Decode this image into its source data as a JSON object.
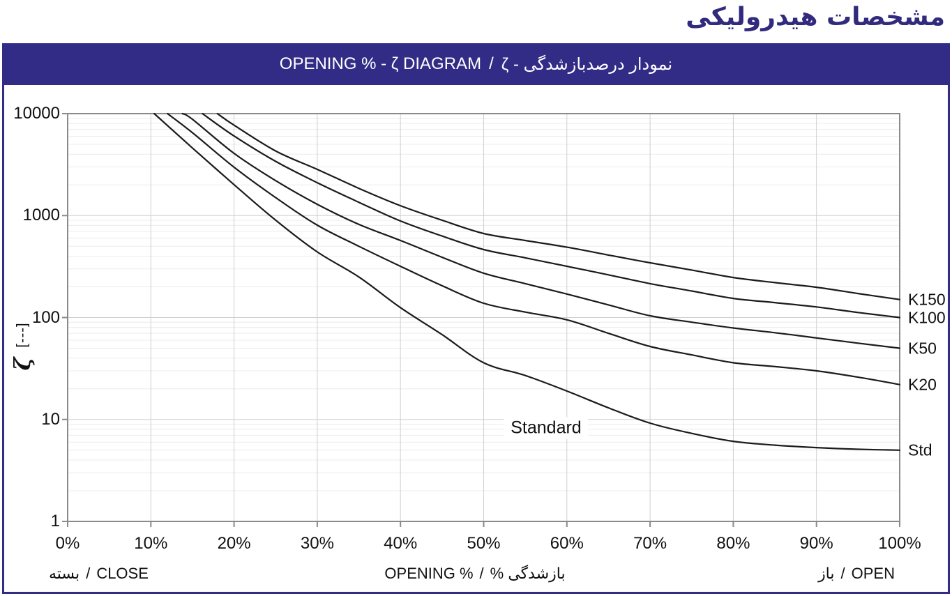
{
  "header": {
    "title_fa": "مشخصات هیدرولیکی"
  },
  "banner": {
    "title_latin": "OPENING % - ζ DIAGRAM",
    "separator": "/",
    "title_farsi_logical": "نمودار درصدبازشدگی - ζ"
  },
  "colors": {
    "indigo": "#332c87",
    "axis": "#8a8a8a",
    "grid_major": "#cfcfcf",
    "grid_minor": "#ececec",
    "curve": "#1b1b1b",
    "text": "#111111"
  },
  "chart_data": {
    "type": "line",
    "title": "OPENING % - ζ DIAGRAM",
    "grid": true,
    "legend_position": "right-edge",
    "x_axis": {
      "label_latin": "OPENING %",
      "label_separator": "/",
      "label_farsi_logical": "بازشدگی %",
      "unit": "%",
      "min": 0,
      "max": 100,
      "ticks": [
        0,
        10,
        20,
        30,
        40,
        50,
        60,
        70,
        80,
        90,
        100
      ]
    },
    "y_axis": {
      "label": "ζ",
      "unit": "[---]",
      "scale": "log",
      "min": 1,
      "max": 10000,
      "ticks": [
        1,
        10,
        100,
        1000,
        10000
      ]
    },
    "corner_labels": {
      "left": {
        "fa": "بسته",
        "sep": "/",
        "en": "CLOSE"
      },
      "right": {
        "fa": "باز",
        "sep": "/",
        "en": "OPEN"
      }
    },
    "annotation": {
      "text": "Standard",
      "at_percent": 57.5,
      "at_zeta": 8.2
    },
    "series": [
      {
        "label": "K150",
        "points": [
          [
            18,
            10000
          ],
          [
            20,
            7700
          ],
          [
            25,
            4300
          ],
          [
            30,
            2840
          ],
          [
            35,
            1850
          ],
          [
            40,
            1250
          ],
          [
            45,
            900
          ],
          [
            50,
            667
          ],
          [
            55,
            570
          ],
          [
            60,
            490
          ],
          [
            65,
            410
          ],
          [
            70,
            344
          ],
          [
            75,
            292
          ],
          [
            80,
            247
          ],
          [
            85,
            220
          ],
          [
            90,
            198
          ],
          [
            95,
            172
          ],
          [
            100,
            150
          ]
        ]
      },
      {
        "label": "K100",
        "points": [
          [
            16.2,
            10000
          ],
          [
            20,
            6030
          ],
          [
            25,
            3400
          ],
          [
            30,
            2100
          ],
          [
            35,
            1350
          ],
          [
            40,
            885
          ],
          [
            45,
            630
          ],
          [
            50,
            464
          ],
          [
            55,
            385
          ],
          [
            60,
            318
          ],
          [
            65,
            262
          ],
          [
            70,
            215
          ],
          [
            75,
            182
          ],
          [
            80,
            154
          ],
          [
            85,
            140
          ],
          [
            90,
            127
          ],
          [
            95,
            112
          ],
          [
            100,
            100
          ]
        ]
      },
      {
        "label": "K50",
        "points": [
          [
            13.8,
            10000
          ],
          [
            15,
            8800
          ],
          [
            20,
            4075
          ],
          [
            25,
            2200
          ],
          [
            30,
            1290
          ],
          [
            35,
            820
          ],
          [
            40,
            570
          ],
          [
            45,
            390
          ],
          [
            50,
            272
          ],
          [
            55,
            215
          ],
          [
            60,
            170
          ],
          [
            65,
            133
          ],
          [
            70,
            104
          ],
          [
            75,
            90
          ],
          [
            80,
            79
          ],
          [
            85,
            71
          ],
          [
            90,
            63
          ],
          [
            95,
            56
          ],
          [
            100,
            50
          ]
        ]
      },
      {
        "label": "K20",
        "points": [
          [
            12,
            10000
          ],
          [
            15,
            6500
          ],
          [
            20,
            2980
          ],
          [
            25,
            1500
          ],
          [
            30,
            805
          ],
          [
            35,
            500
          ],
          [
            40,
            318
          ],
          [
            45,
            205
          ],
          [
            50,
            138
          ],
          [
            55,
            113
          ],
          [
            60,
            95
          ],
          [
            65,
            70
          ],
          [
            70,
            52
          ],
          [
            75,
            43
          ],
          [
            80,
            36
          ],
          [
            85,
            33
          ],
          [
            90,
            30
          ],
          [
            95,
            26
          ],
          [
            100,
            22
          ]
        ]
      },
      {
        "label": "Std",
        "points": [
          [
            10.4,
            10000
          ],
          [
            15,
            4600
          ],
          [
            20,
            2010
          ],
          [
            25,
            900
          ],
          [
            30,
            440
          ],
          [
            35,
            250
          ],
          [
            40,
            125
          ],
          [
            45,
            68
          ],
          [
            50,
            36
          ],
          [
            55,
            27
          ],
          [
            60,
            19
          ],
          [
            65,
            13
          ],
          [
            70,
            9.2
          ],
          [
            75,
            7.3
          ],
          [
            80,
            6.1
          ],
          [
            85,
            5.6
          ],
          [
            90,
            5.3
          ],
          [
            95,
            5.1
          ],
          [
            100,
            5
          ]
        ]
      }
    ]
  }
}
